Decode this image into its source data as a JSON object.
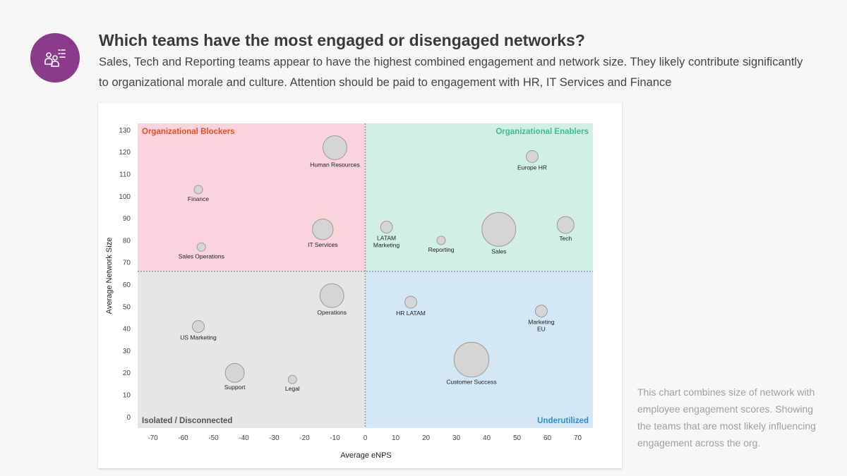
{
  "header": {
    "icon": "team-feedback-icon",
    "title": "Which teams have the most engaged or disengaged networks?",
    "subtitle": "Sales, Tech and Reporting teams appear to have the highest combined engagement and network size. They likely contribute significantly to organizational morale and culture. Attention should be paid to engagement with HR, IT Services and Finance"
  },
  "side_note": "This chart combines size of network with employee engagement scores. Showing the teams that are most likely influencing engagement across the org.",
  "colors": {
    "badge": "#8b3a8c",
    "blockers_bg": "#f9d4db",
    "blockers_text": "#ec4a26",
    "enablers_bg": "#d2efe3",
    "enablers_text": "#3fbf84",
    "isolated_bg": "#e6e6e6",
    "isolated_text": "#555555",
    "underutilized_bg": "#d3e7f4",
    "underutilized_text": "#2f8ed1",
    "bubble_fill": "#d5d5d5",
    "bubble_stroke": "#9a9a9a"
  },
  "chart_data": {
    "type": "scatter",
    "subtype": "bubble",
    "title": "",
    "xlabel": "Average eNPS",
    "ylabel": "Average Network Size",
    "xlim": [
      -75,
      75
    ],
    "ylim": [
      -5,
      133
    ],
    "x_ticks": [
      -70,
      -60,
      -50,
      -40,
      -30,
      -20,
      -10,
      0,
      10,
      20,
      30,
      40,
      50,
      60,
      70
    ],
    "y_ticks": [
      0,
      10,
      20,
      30,
      40,
      50,
      60,
      70,
      80,
      90,
      100,
      110,
      120,
      130
    ],
    "x_divider": 0,
    "y_divider": 66,
    "quadrants": [
      {
        "key": "blockers",
        "label": "Organizational Blockers",
        "position": "top-left"
      },
      {
        "key": "enablers",
        "label": "Organizational Enablers",
        "position": "top-right"
      },
      {
        "key": "isolated",
        "label": "Isolated / Disconnected",
        "position": "bottom-left"
      },
      {
        "key": "underutilized",
        "label": "Underutilized",
        "position": "bottom-right"
      }
    ],
    "points": [
      {
        "name": "Finance",
        "lines": [
          "Finance"
        ],
        "x": -55,
        "y": 103,
        "size": 1
      },
      {
        "name": "Human Resources",
        "lines": [
          "Human Resources"
        ],
        "x": -10,
        "y": 122,
        "size": 8
      },
      {
        "name": "IT Services",
        "lines": [
          "IT Services"
        ],
        "x": -14,
        "y": 85,
        "size": 6
      },
      {
        "name": "Sales Operations",
        "lines": [
          "Sales Operations"
        ],
        "x": -54,
        "y": 77,
        "size": 1
      },
      {
        "name": "LATAM Marketing",
        "lines": [
          "LATAM",
          "Marketing"
        ],
        "x": 7,
        "y": 86,
        "size": 2
      },
      {
        "name": "Reporting",
        "lines": [
          "Reporting"
        ],
        "x": 25,
        "y": 80,
        "size": 1
      },
      {
        "name": "Sales",
        "lines": [
          "Sales"
        ],
        "x": 44,
        "y": 85,
        "size": 16
      },
      {
        "name": "Europe HR",
        "lines": [
          "Europe HR"
        ],
        "x": 55,
        "y": 118,
        "size": 2
      },
      {
        "name": "Tech",
        "lines": [
          "Tech"
        ],
        "x": 66,
        "y": 87,
        "size": 4
      },
      {
        "name": "Operations",
        "lines": [
          "Operations"
        ],
        "x": -11,
        "y": 55,
        "size": 8
      },
      {
        "name": "US Marketing",
        "lines": [
          "US Marketing"
        ],
        "x": -55,
        "y": 41,
        "size": 2
      },
      {
        "name": "Support",
        "lines": [
          "Support"
        ],
        "x": -43,
        "y": 20,
        "size": 5
      },
      {
        "name": "Legal",
        "lines": [
          "Legal"
        ],
        "x": -24,
        "y": 17,
        "size": 1
      },
      {
        "name": "HR LATAM",
        "lines": [
          "HR LATAM"
        ],
        "x": 15,
        "y": 52,
        "size": 2
      },
      {
        "name": "Marketing EU",
        "lines": [
          "Marketing",
          "EU"
        ],
        "x": 58,
        "y": 48,
        "size": 2
      },
      {
        "name": "Customer Success",
        "lines": [
          "Customer Success"
        ],
        "x": 35,
        "y": 26,
        "size": 17
      }
    ]
  }
}
